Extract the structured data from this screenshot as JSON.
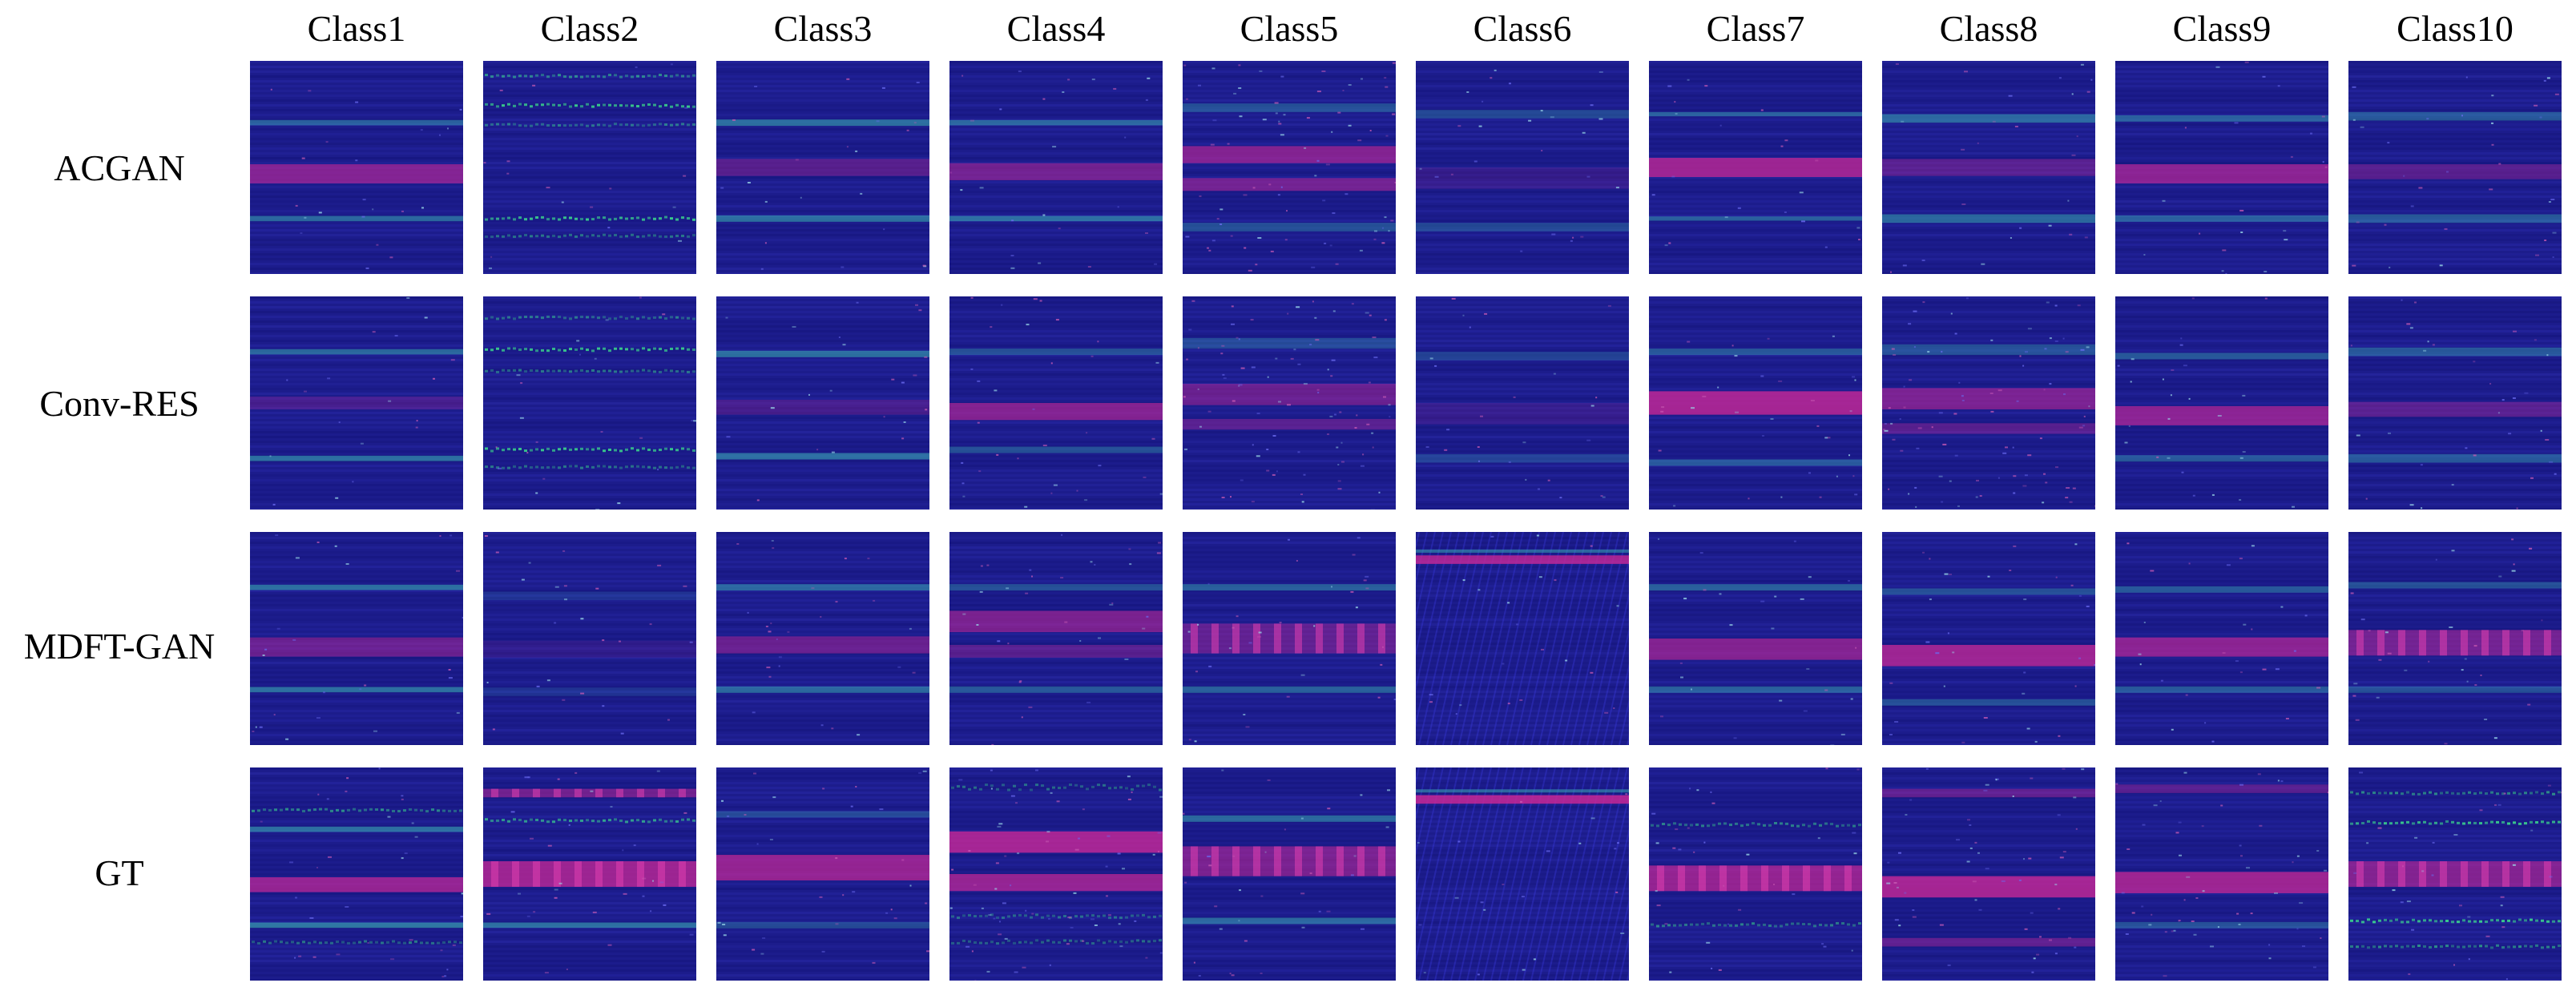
{
  "columns": [
    "Class1",
    "Class2",
    "Class3",
    "Class4",
    "Class5",
    "Class6",
    "Class7",
    "Class8",
    "Class9",
    "Class10"
  ],
  "rows": [
    "ACGAN",
    "Conv-RES",
    "MDFT-GAN",
    "GT"
  ],
  "colors": {
    "background": "#1c1c8c",
    "magenta_band": "#c82896",
    "cyan_band": "#3cb4b4",
    "green_dots": "#3cdc8c"
  },
  "tiles": [
    [
      {
        "bands": [
          {
            "y": 0.29,
            "h": 0.025,
            "c": "cyan",
            "a": 0.45
          },
          {
            "y": 0.53,
            "h": 0.09,
            "c": "magenta",
            "a": 0.6
          },
          {
            "y": 0.74,
            "h": 0.025,
            "c": "cyan",
            "a": 0.5
          }
        ],
        "noise": 0.1
      },
      {
        "bands": [
          {
            "y": 0.07,
            "h": 0.02,
            "c": "green",
            "a": 0.6
          },
          {
            "y": 0.21,
            "h": 0.025,
            "c": "green",
            "a": 0.9
          },
          {
            "y": 0.3,
            "h": 0.02,
            "c": "green",
            "a": 0.5
          },
          {
            "y": 0.74,
            "h": 0.025,
            "c": "green",
            "a": 0.9
          },
          {
            "y": 0.82,
            "h": 0.02,
            "c": "green",
            "a": 0.5
          }
        ],
        "noise": 0.08
      },
      {
        "bands": [
          {
            "y": 0.29,
            "h": 0.03,
            "c": "cyan",
            "a": 0.55
          },
          {
            "y": 0.5,
            "h": 0.08,
            "c": "magenta",
            "a": 0.35
          },
          {
            "y": 0.74,
            "h": 0.03,
            "c": "cyan",
            "a": 0.55
          }
        ],
        "noise": 0.1
      },
      {
        "bands": [
          {
            "y": 0.29,
            "h": 0.025,
            "c": "cyan",
            "a": 0.5
          },
          {
            "y": 0.52,
            "h": 0.08,
            "c": "magenta",
            "a": 0.5
          },
          {
            "y": 0.74,
            "h": 0.025,
            "c": "cyan",
            "a": 0.55
          }
        ],
        "noise": 0.12
      },
      {
        "bands": [
          {
            "y": 0.22,
            "h": 0.04,
            "c": "cyan",
            "a": 0.35
          },
          {
            "y": 0.44,
            "h": 0.08,
            "c": "magenta",
            "a": 0.6
          },
          {
            "y": 0.58,
            "h": 0.06,
            "c": "magenta",
            "a": 0.5
          },
          {
            "y": 0.78,
            "h": 0.04,
            "c": "cyan",
            "a": 0.35
          }
        ],
        "noise": 0.35
      },
      {
        "bands": [
          {
            "y": 0.25,
            "h": 0.04,
            "c": "cyan",
            "a": 0.3
          },
          {
            "y": 0.55,
            "h": 0.1,
            "c": "magenta",
            "a": 0.15
          },
          {
            "y": 0.78,
            "h": 0.04,
            "c": "cyan",
            "a": 0.3
          }
        ],
        "noise": 0.12
      },
      {
        "bands": [
          {
            "y": 0.25,
            "h": 0.02,
            "c": "cyan",
            "a": 0.45
          },
          {
            "y": 0.5,
            "h": 0.09,
            "c": "magenta",
            "a": 0.75
          },
          {
            "y": 0.74,
            "h": 0.02,
            "c": "cyan",
            "a": 0.45
          }
        ],
        "noise": 0.1
      },
      {
        "bands": [
          {
            "y": 0.27,
            "h": 0.04,
            "c": "cyan",
            "a": 0.5
          },
          {
            "y": 0.5,
            "h": 0.08,
            "c": "magenta",
            "a": 0.35
          },
          {
            "y": 0.74,
            "h": 0.04,
            "c": "cyan",
            "a": 0.5
          }
        ],
        "noise": 0.12
      },
      {
        "bands": [
          {
            "y": 0.27,
            "h": 0.03,
            "c": "cyan",
            "a": 0.45
          },
          {
            "y": 0.53,
            "h": 0.09,
            "c": "magenta",
            "a": 0.65
          },
          {
            "y": 0.74,
            "h": 0.03,
            "c": "cyan",
            "a": 0.45
          }
        ],
        "noise": 0.1
      },
      {
        "bands": [
          {
            "y": 0.26,
            "h": 0.04,
            "c": "cyan",
            "a": 0.4
          },
          {
            "y": 0.52,
            "h": 0.07,
            "c": "magenta",
            "a": 0.35
          },
          {
            "y": 0.74,
            "h": 0.04,
            "c": "cyan",
            "a": 0.4
          }
        ],
        "noise": 0.15
      }
    ],
    [
      {
        "bands": [
          {
            "y": 0.26,
            "h": 0.025,
            "c": "cyan",
            "a": 0.5
          },
          {
            "y": 0.5,
            "h": 0.06,
            "c": "magenta",
            "a": 0.25
          },
          {
            "y": 0.76,
            "h": 0.025,
            "c": "cyan",
            "a": 0.55
          }
        ],
        "noise": 0.08
      },
      {
        "bands": [
          {
            "y": 0.1,
            "h": 0.02,
            "c": "green",
            "a": 0.5
          },
          {
            "y": 0.25,
            "h": 0.025,
            "c": "green",
            "a": 0.9
          },
          {
            "y": 0.35,
            "h": 0.02,
            "c": "green",
            "a": 0.5
          },
          {
            "y": 0.72,
            "h": 0.025,
            "c": "green",
            "a": 0.9
          },
          {
            "y": 0.8,
            "h": 0.02,
            "c": "green",
            "a": 0.5
          }
        ],
        "noise": 0.1
      },
      {
        "bands": [
          {
            "y": 0.27,
            "h": 0.03,
            "c": "cyan",
            "a": 0.55
          },
          {
            "y": 0.52,
            "h": 0.07,
            "c": "magenta",
            "a": 0.25
          },
          {
            "y": 0.75,
            "h": 0.03,
            "c": "cyan",
            "a": 0.55
          }
        ],
        "noise": 0.1
      },
      {
        "bands": [
          {
            "y": 0.26,
            "h": 0.03,
            "c": "cyan",
            "a": 0.35
          },
          {
            "y": 0.54,
            "h": 0.08,
            "c": "magenta",
            "a": 0.6
          },
          {
            "y": 0.72,
            "h": 0.03,
            "c": "cyan",
            "a": 0.35
          }
        ],
        "noise": 0.15
      },
      {
        "bands": [
          {
            "y": 0.22,
            "h": 0.05,
            "c": "cyan",
            "a": 0.3
          },
          {
            "y": 0.46,
            "h": 0.1,
            "c": "magenta",
            "a": 0.45
          },
          {
            "y": 0.6,
            "h": 0.05,
            "c": "magenta",
            "a": 0.35
          }
        ],
        "noise": 0.4
      },
      {
        "bands": [
          {
            "y": 0.28,
            "h": 0.04,
            "c": "cyan",
            "a": 0.25
          },
          {
            "y": 0.55,
            "h": 0.1,
            "c": "magenta",
            "a": 0.15
          },
          {
            "y": 0.76,
            "h": 0.04,
            "c": "cyan",
            "a": 0.25
          }
        ],
        "noise": 0.12
      },
      {
        "bands": [
          {
            "y": 0.26,
            "h": 0.03,
            "c": "cyan",
            "a": 0.4
          },
          {
            "y": 0.5,
            "h": 0.11,
            "c": "magenta",
            "a": 0.8
          },
          {
            "y": 0.78,
            "h": 0.03,
            "c": "cyan",
            "a": 0.4
          }
        ],
        "noise": 0.15
      },
      {
        "bands": [
          {
            "y": 0.25,
            "h": 0.05,
            "c": "cyan",
            "a": 0.35
          },
          {
            "y": 0.48,
            "h": 0.1,
            "c": "magenta",
            "a": 0.55
          },
          {
            "y": 0.62,
            "h": 0.05,
            "c": "magenta",
            "a": 0.35
          }
        ],
        "noise": 0.4
      },
      {
        "bands": [
          {
            "y": 0.28,
            "h": 0.03,
            "c": "cyan",
            "a": 0.4
          },
          {
            "y": 0.56,
            "h": 0.09,
            "c": "magenta",
            "a": 0.65
          },
          {
            "y": 0.76,
            "h": 0.03,
            "c": "cyan",
            "a": 0.4
          }
        ],
        "noise": 0.12
      },
      {
        "bands": [
          {
            "y": 0.26,
            "h": 0.04,
            "c": "cyan",
            "a": 0.4
          },
          {
            "y": 0.53,
            "h": 0.07,
            "c": "magenta",
            "a": 0.35
          },
          {
            "y": 0.76,
            "h": 0.04,
            "c": "cyan",
            "a": 0.4
          }
        ],
        "noise": 0.15
      }
    ],
    [
      {
        "bands": [
          {
            "y": 0.26,
            "h": 0.025,
            "c": "cyan",
            "a": 0.55
          },
          {
            "y": 0.54,
            "h": 0.09,
            "c": "magenta",
            "a": 0.45
          },
          {
            "y": 0.74,
            "h": 0.025,
            "c": "cyan",
            "a": 0.55
          }
        ],
        "noise": 0.12
      },
      {
        "bands": [
          {
            "y": 0.3,
            "h": 0.04,
            "c": "cyan",
            "a": 0.15
          },
          {
            "y": 0.55,
            "h": 0.08,
            "c": "magenta",
            "a": 0.12
          },
          {
            "y": 0.75,
            "h": 0.04,
            "c": "cyan",
            "a": 0.15
          }
        ],
        "noise": 0.12
      },
      {
        "bands": [
          {
            "y": 0.26,
            "h": 0.03,
            "c": "cyan",
            "a": 0.5
          },
          {
            "y": 0.53,
            "h": 0.08,
            "c": "magenta",
            "a": 0.45
          },
          {
            "y": 0.74,
            "h": 0.03,
            "c": "cyan",
            "a": 0.5
          }
        ],
        "noise": 0.12
      },
      {
        "bands": [
          {
            "y": 0.26,
            "h": 0.03,
            "c": "cyan",
            "a": 0.35
          },
          {
            "y": 0.42,
            "h": 0.1,
            "c": "magenta",
            "a": 0.55
          },
          {
            "y": 0.56,
            "h": 0.06,
            "c": "magenta",
            "a": 0.35
          },
          {
            "y": 0.74,
            "h": 0.03,
            "c": "cyan",
            "a": 0.4
          }
        ],
        "noise": 0.15
      },
      {
        "bands": [
          {
            "y": 0.26,
            "h": 0.03,
            "c": "cyan",
            "a": 0.45
          },
          {
            "y": 0.5,
            "h": 0.14,
            "c": "magenta",
            "a": 0.4
          },
          {
            "y": 0.74,
            "h": 0.03,
            "c": "cyan",
            "a": 0.45
          }
        ],
        "noise": 0.15,
        "stripes": true
      },
      {
        "bands": [
          {
            "y": 0.13,
            "h": 0.04,
            "c": "magenta",
            "a": 0.8
          },
          {
            "y": 0.09,
            "h": 0.015,
            "c": "cyan",
            "a": 0.5
          }
        ],
        "noise": 0.1,
        "diag": true
      },
      {
        "bands": [
          {
            "y": 0.26,
            "h": 0.03,
            "c": "cyan",
            "a": 0.45
          },
          {
            "y": 0.55,
            "h": 0.1,
            "c": "magenta",
            "a": 0.6
          },
          {
            "y": 0.74,
            "h": 0.03,
            "c": "cyan",
            "a": 0.45
          }
        ],
        "noise": 0.12
      },
      {
        "bands": [
          {
            "y": 0.28,
            "h": 0.03,
            "c": "cyan",
            "a": 0.35
          },
          {
            "y": 0.58,
            "h": 0.1,
            "c": "magenta",
            "a": 0.75
          },
          {
            "y": 0.8,
            "h": 0.03,
            "c": "cyan",
            "a": 0.35
          }
        ],
        "noise": 0.15
      },
      {
        "bands": [
          {
            "y": 0.27,
            "h": 0.03,
            "c": "cyan",
            "a": 0.4
          },
          {
            "y": 0.54,
            "h": 0.09,
            "c": "magenta",
            "a": 0.65
          },
          {
            "y": 0.74,
            "h": 0.03,
            "c": "cyan",
            "a": 0.4
          }
        ],
        "noise": 0.12
      },
      {
        "bands": [
          {
            "y": 0.25,
            "h": 0.03,
            "c": "cyan",
            "a": 0.35
          },
          {
            "y": 0.52,
            "h": 0.12,
            "c": "magenta",
            "a": 0.5
          },
          {
            "y": 0.74,
            "h": 0.03,
            "c": "cyan",
            "a": 0.35
          }
        ],
        "noise": 0.15,
        "stripes": true
      }
    ],
    [
      {
        "bands": [
          {
            "y": 0.2,
            "h": 0.02,
            "c": "green",
            "a": 0.6
          },
          {
            "y": 0.29,
            "h": 0.025,
            "c": "cyan",
            "a": 0.55
          },
          {
            "y": 0.55,
            "h": 0.07,
            "c": "magenta",
            "a": 0.7
          },
          {
            "y": 0.74,
            "h": 0.025,
            "c": "cyan",
            "a": 0.6
          },
          {
            "y": 0.82,
            "h": 0.02,
            "c": "green",
            "a": 0.5
          }
        ],
        "noise": 0.15
      },
      {
        "bands": [
          {
            "y": 0.12,
            "h": 0.04,
            "c": "magenta",
            "a": 0.5
          },
          {
            "y": 0.25,
            "h": 0.025,
            "c": "green",
            "a": 0.7
          },
          {
            "y": 0.5,
            "h": 0.12,
            "c": "magenta",
            "a": 0.75
          },
          {
            "y": 0.74,
            "h": 0.025,
            "c": "cyan",
            "a": 0.55
          }
        ],
        "noise": 0.15,
        "stripes": true
      },
      {
        "bands": [
          {
            "y": 0.22,
            "h": 0.03,
            "c": "cyan",
            "a": 0.3
          },
          {
            "y": 0.47,
            "h": 0.12,
            "c": "magenta",
            "a": 0.7
          },
          {
            "y": 0.74,
            "h": 0.03,
            "c": "cyan",
            "a": 0.3
          }
        ],
        "noise": 0.15
      },
      {
        "bands": [
          {
            "y": 0.1,
            "h": 0.05,
            "c": "green",
            "a": 0.45
          },
          {
            "y": 0.35,
            "h": 0.1,
            "c": "magenta",
            "a": 0.8
          },
          {
            "y": 0.54,
            "h": 0.08,
            "c": "magenta",
            "a": 0.7
          },
          {
            "y": 0.7,
            "h": 0.03,
            "c": "green",
            "a": 0.45
          },
          {
            "y": 0.82,
            "h": 0.03,
            "c": "green",
            "a": 0.45
          }
        ],
        "noise": 0.3
      },
      {
        "bands": [
          {
            "y": 0.24,
            "h": 0.03,
            "c": "cyan",
            "a": 0.5
          },
          {
            "y": 0.44,
            "h": 0.14,
            "c": "magenta",
            "a": 0.55
          },
          {
            "y": 0.72,
            "h": 0.03,
            "c": "cyan",
            "a": 0.5
          }
        ],
        "noise": 0.15,
        "stripes": true
      },
      {
        "bands": [
          {
            "y": 0.15,
            "h": 0.04,
            "c": "magenta",
            "a": 0.85
          },
          {
            "y": 0.11,
            "h": 0.015,
            "c": "cyan",
            "a": 0.5
          }
        ],
        "noise": 0.1,
        "diag": true
      },
      {
        "bands": [
          {
            "y": 0.27,
            "h": 0.03,
            "c": "green",
            "a": 0.55
          },
          {
            "y": 0.52,
            "h": 0.12,
            "c": "magenta",
            "a": 0.7
          },
          {
            "y": 0.74,
            "h": 0.03,
            "c": "green",
            "a": 0.55
          }
        ],
        "noise": 0.15,
        "stripes": true
      },
      {
        "bands": [
          {
            "y": 0.12,
            "h": 0.04,
            "c": "magenta",
            "a": 0.4
          },
          {
            "y": 0.56,
            "h": 0.1,
            "c": "magenta",
            "a": 0.8
          },
          {
            "y": 0.82,
            "h": 0.04,
            "c": "magenta",
            "a": 0.4
          }
        ],
        "noise": 0.25
      },
      {
        "bands": [
          {
            "y": 0.1,
            "h": 0.04,
            "c": "magenta",
            "a": 0.35
          },
          {
            "y": 0.54,
            "h": 0.1,
            "c": "magenta",
            "a": 0.75
          },
          {
            "y": 0.74,
            "h": 0.03,
            "c": "cyan",
            "a": 0.35
          }
        ],
        "noise": 0.25
      },
      {
        "bands": [
          {
            "y": 0.12,
            "h": 0.02,
            "c": "green",
            "a": 0.6
          },
          {
            "y": 0.26,
            "h": 0.025,
            "c": "green",
            "a": 0.9
          },
          {
            "y": 0.5,
            "h": 0.12,
            "c": "magenta",
            "a": 0.6
          },
          {
            "y": 0.72,
            "h": 0.025,
            "c": "green",
            "a": 0.9
          },
          {
            "y": 0.84,
            "h": 0.02,
            "c": "green",
            "a": 0.6
          }
        ],
        "noise": 0.15,
        "stripes": true
      }
    ]
  ]
}
